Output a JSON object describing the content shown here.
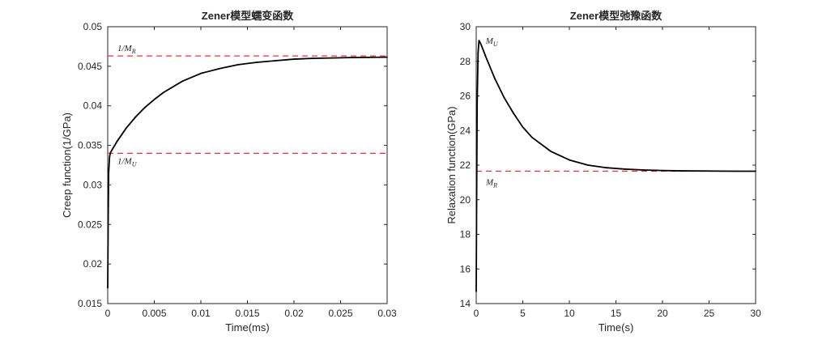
{
  "chart_data": [
    {
      "type": "line",
      "title": "Zener模型蠕变函数",
      "xlabel": "Time(ms)",
      "ylabel": "Creep function(1/GPa)",
      "xlim": [
        0,
        0.03
      ],
      "ylim": [
        0.015,
        0.05
      ],
      "xticks": [
        0,
        0.005,
        0.01,
        0.015,
        0.02,
        0.025,
        0.03
      ],
      "xtick_labels": [
        "0",
        "0.005",
        "0.01",
        "0.015",
        "0.02",
        "0.025",
        "0.03"
      ],
      "yticks": [
        0.015,
        0.02,
        0.025,
        0.03,
        0.035,
        0.04,
        0.045,
        0.05
      ],
      "ytick_labels": [
        "0.015",
        "0.02",
        "0.025",
        "0.03",
        "0.035",
        "0.04",
        "0.045",
        "0.05"
      ],
      "grid": false,
      "series": [
        {
          "color": "#000000",
          "style": "solid",
          "x": [
            0,
            5e-05,
            0.0001,
            0.0002,
            0.0003,
            0.001,
            0.002,
            0.003,
            0.004,
            0.005,
            0.006,
            0.008,
            0.01,
            0.012,
            0.014,
            0.016,
            0.018,
            0.02,
            0.022,
            0.024,
            0.026,
            0.028,
            0.03
          ],
          "y": [
            0.017,
            0.0255,
            0.0315,
            0.0336,
            0.0341,
            0.0355,
            0.0372,
            0.0386,
            0.0398,
            0.0408,
            0.0417,
            0.0431,
            0.0441,
            0.0447,
            0.0452,
            0.0455,
            0.0457,
            0.0459,
            0.046,
            0.04605,
            0.0461,
            0.04612,
            0.04615
          ]
        }
      ],
      "hlines": [
        {
          "y": 0.0463,
          "color": "#e8323c",
          "style": "dashed",
          "label": "1/M",
          "sub": "R"
        },
        {
          "y": 0.034,
          "color": "#e8323c",
          "style": "dashed",
          "label": "1/M",
          "sub": "U"
        }
      ]
    },
    {
      "type": "line",
      "title": "Zener模型弛豫函数",
      "xlabel": "Time(s)",
      "ylabel": "Relaxation function(GPa)",
      "xlim": [
        0,
        30
      ],
      "ylim": [
        14,
        30
      ],
      "xticks": [
        0,
        5,
        10,
        15,
        20,
        25,
        30
      ],
      "xtick_labels": [
        "0",
        "5",
        "10",
        "15",
        "20",
        "25",
        "30"
      ],
      "yticks": [
        14,
        16,
        18,
        20,
        22,
        24,
        26,
        28,
        30
      ],
      "ytick_labels": [
        "14",
        "16",
        "18",
        "20",
        "22",
        "24",
        "26",
        "28",
        "30"
      ],
      "grid": false,
      "series": [
        {
          "color": "#000000",
          "style": "solid",
          "x": [
            0,
            0.05,
            0.1,
            0.2,
            0.3,
            0.5,
            1,
            2,
            3,
            4,
            5,
            6,
            8,
            10,
            12,
            14,
            16,
            18,
            20,
            22,
            25,
            28,
            30
          ],
          "y": [
            14.7,
            20.5,
            25.5,
            28.5,
            29.2,
            29.0,
            28.3,
            27.0,
            25.9,
            25.0,
            24.2,
            23.6,
            22.8,
            22.3,
            22.0,
            21.85,
            21.77,
            21.72,
            21.69,
            21.67,
            21.66,
            21.65,
            21.65
          ]
        }
      ],
      "hlines": [
        {
          "y": 21.65,
          "color": "#e8323c",
          "style": "dashed",
          "label": "M",
          "sub": "R"
        }
      ],
      "annotations": [
        {
          "label": "M",
          "sub": "U",
          "x": 0.15,
          "y": 29.2
        }
      ]
    }
  ]
}
